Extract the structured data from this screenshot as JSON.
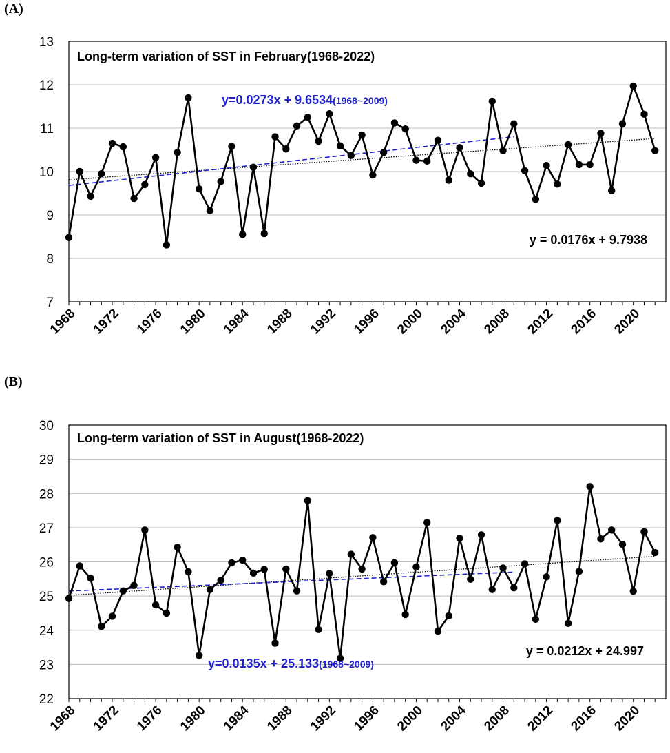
{
  "chart_data": [
    {
      "panel_label": "(A)",
      "type": "line",
      "title": "Long-term variation of SST in February(1968-2022)",
      "xlabel": "",
      "ylabel": "",
      "x": [
        1968,
        1969,
        1970,
        1971,
        1972,
        1973,
        1974,
        1975,
        1976,
        1977,
        1978,
        1979,
        1980,
        1981,
        1982,
        1983,
        1984,
        1985,
        1986,
        1987,
        1988,
        1989,
        1990,
        1991,
        1992,
        1993,
        1994,
        1995,
        1996,
        1997,
        1998,
        1999,
        2000,
        2001,
        2002,
        2003,
        2004,
        2005,
        2006,
        2007,
        2008,
        2009,
        2010,
        2011,
        2012,
        2013,
        2014,
        2015,
        2016,
        2017,
        2018,
        2019,
        2020,
        2021,
        2022
      ],
      "values": [
        8.48,
        10.0,
        9.43,
        9.95,
        10.65,
        10.57,
        9.38,
        9.7,
        10.32,
        8.31,
        10.44,
        11.7,
        9.6,
        9.1,
        9.77,
        10.58,
        8.55,
        10.1,
        8.57,
        10.8,
        10.52,
        11.05,
        11.25,
        10.7,
        11.33,
        10.59,
        10.37,
        10.84,
        9.92,
        10.44,
        11.12,
        10.98,
        10.26,
        10.24,
        10.72,
        9.8,
        10.55,
        9.95,
        9.73,
        11.62,
        10.48,
        11.1,
        10.02,
        9.36,
        10.14,
        9.71,
        10.62,
        10.16,
        10.16,
        10.88,
        9.56,
        11.1,
        11.97,
        11.32,
        10.48
      ],
      "x_ticks": [
        "1968",
        "1972",
        "1976",
        "1980",
        "1984",
        "1988",
        "1992",
        "1996",
        "2000",
        "2004",
        "2008",
        "2012",
        "2016",
        "2020"
      ],
      "y_ticks": [
        "7",
        "8",
        "9",
        "10",
        "11",
        "12",
        "13"
      ],
      "ylim": [
        7,
        13
      ],
      "grid": true,
      "trend_full": {
        "equation": "y = 0.0176x + 9.7938",
        "slope": 0.0176,
        "intercept": 9.7938,
        "color": "#000000",
        "style": "dotted"
      },
      "trend_partial": {
        "equation": "y=0.0273x + 9.6534",
        "range_label": "(1968~2009)",
        "slope": 0.0273,
        "intercept": 9.6534,
        "x_end": 2009,
        "color": "#1f1fd0",
        "style": "dashed"
      }
    },
    {
      "panel_label": "(B)",
      "type": "line",
      "title": "Long-term variation of SST in August(1968-2022)",
      "xlabel": "",
      "ylabel": "",
      "x": [
        1968,
        1969,
        1970,
        1971,
        1972,
        1973,
        1974,
        1975,
        1976,
        1977,
        1978,
        1979,
        1980,
        1981,
        1982,
        1983,
        1984,
        1985,
        1986,
        1987,
        1988,
        1989,
        1990,
        1991,
        1992,
        1993,
        1994,
        1995,
        1996,
        1997,
        1998,
        1999,
        2000,
        2001,
        2002,
        2003,
        2004,
        2005,
        2006,
        2007,
        2008,
        2009,
        2010,
        2011,
        2012,
        2013,
        2014,
        2015,
        2016,
        2017,
        2018,
        2019,
        2020,
        2021,
        2022
      ],
      "values": [
        24.93,
        25.88,
        25.52,
        24.11,
        24.41,
        25.15,
        25.31,
        26.93,
        24.74,
        24.5,
        26.43,
        25.71,
        23.26,
        25.19,
        25.46,
        25.97,
        26.05,
        25.67,
        25.78,
        23.62,
        25.79,
        25.15,
        27.79,
        24.02,
        25.66,
        23.18,
        26.22,
        25.79,
        26.71,
        25.42,
        25.97,
        24.46,
        25.85,
        27.15,
        23.97,
        24.42,
        26.69,
        25.49,
        26.79,
        25.19,
        25.82,
        25.24,
        25.94,
        24.32,
        25.56,
        27.21,
        24.2,
        25.72,
        28.2,
        26.67,
        26.93,
        26.51,
        25.14,
        26.88,
        26.27
      ],
      "x_ticks": [
        "1968",
        "1972",
        "1976",
        "1980",
        "1984",
        "1988",
        "1992",
        "1996",
        "2000",
        "2004",
        "2008",
        "2012",
        "2016",
        "2020"
      ],
      "y_ticks": [
        "22",
        "23",
        "24",
        "25",
        "26",
        "27",
        "28",
        "29",
        "30"
      ],
      "ylim": [
        22,
        30
      ],
      "grid": true,
      "trend_full": {
        "equation": "y = 0.0212x + 24.997",
        "slope": 0.0212,
        "intercept": 24.997,
        "color": "#000000",
        "style": "dotted"
      },
      "trend_partial": {
        "equation": "y=0.0135x + 25.133",
        "range_label": "(1968~2009)",
        "slope": 0.0135,
        "intercept": 25.133,
        "x_end": 2009,
        "color": "#1f1fd0",
        "style": "dashed"
      }
    }
  ]
}
